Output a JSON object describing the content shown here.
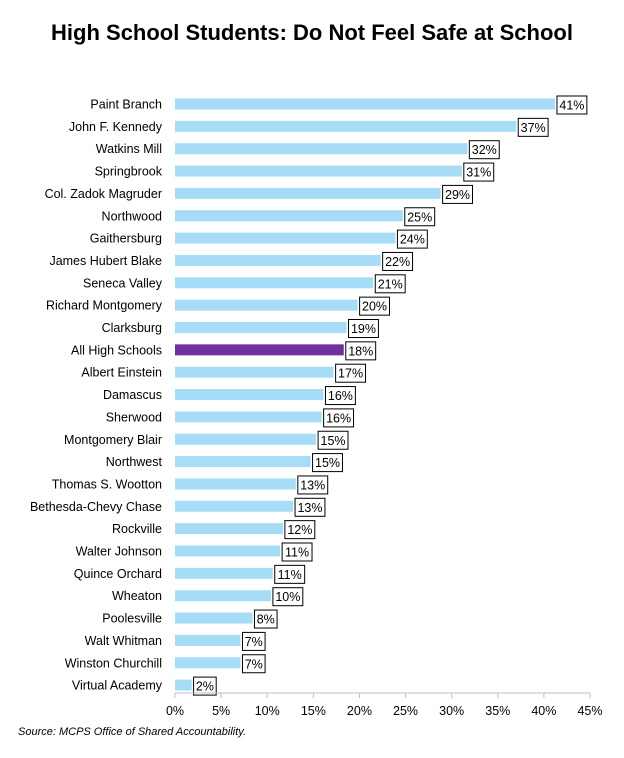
{
  "chart_data": {
    "type": "bar",
    "orientation": "horizontal",
    "title": "High School Students: Do Not Feel Safe at School",
    "categories": [
      "Paint Branch",
      "John F. Kennedy",
      "Watkins Mill",
      "Springbrook",
      "Col. Zadok Magruder",
      "Northwood",
      "Gaithersburg",
      "James Hubert Blake",
      "Seneca Valley",
      "Richard Montgomery",
      "Clarksburg",
      "All High Schools",
      "Albert Einstein",
      "Damascus",
      "Sherwood",
      "Montgomery Blair",
      "Northwest",
      "Thomas S. Wootton",
      "Bethesda-Chevy Chase",
      "Rockville",
      "Walter Johnson",
      "Quince Orchard",
      "Wheaton",
      "Poolesville",
      "Walt Whitman",
      "Winston Churchill",
      "Virtual Academy"
    ],
    "values": [
      41.2,
      37,
      31.7,
      31.1,
      28.8,
      24.7,
      23.9,
      22.3,
      21.5,
      19.8,
      18.6,
      18.3,
      17.2,
      16.1,
      15.9,
      15.3,
      14.7,
      13.1,
      12.8,
      11.7,
      11.4,
      10.6,
      10.4,
      8.4,
      7.1,
      7.1,
      1.8
    ],
    "data_labels": [
      "41%",
      "37%",
      "32%",
      "31%",
      "29%",
      "25%",
      "24%",
      "22%",
      "21%",
      "20%",
      "19%",
      "18%",
      "17%",
      "16%",
      "16%",
      "15%",
      "15%",
      "13%",
      "13%",
      "12%",
      "11%",
      "11%",
      "10%",
      "8%",
      "7%",
      "7%",
      "2%"
    ],
    "highlight_category": "All High Schools",
    "xlim": [
      0,
      45
    ],
    "x_ticks": [
      "0%",
      "5%",
      "10%",
      "15%",
      "20%",
      "25%",
      "30%",
      "35%",
      "40%",
      "45%"
    ],
    "grid": false,
    "legend": "none",
    "colors": {
      "bar": "#a6dcf6",
      "highlight": "#7030a0",
      "label_border": "#000000"
    }
  },
  "source_note": "Source: MCPS Office of Shared Accountability."
}
